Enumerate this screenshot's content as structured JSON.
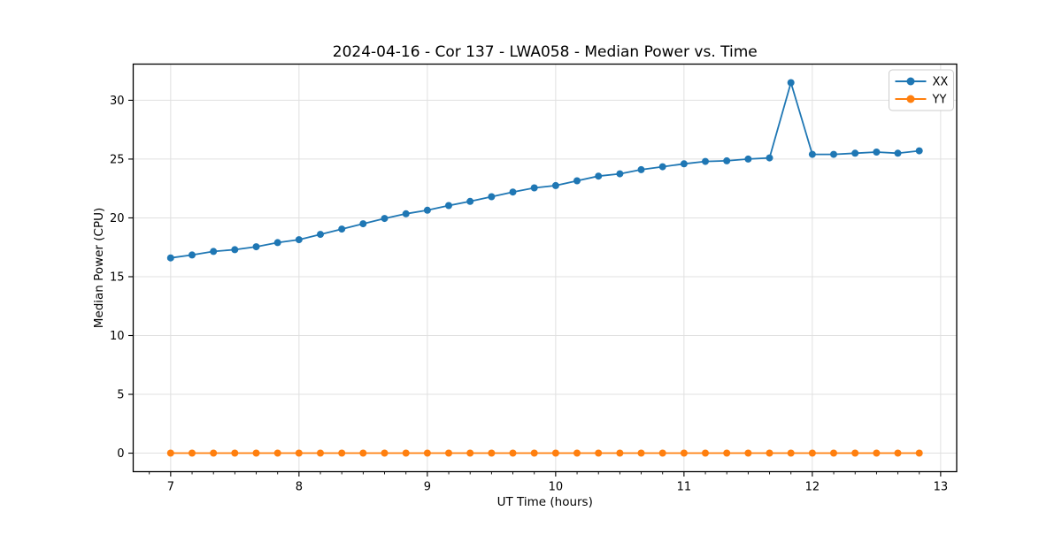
{
  "figure": {
    "background": "#ffffff",
    "frame_color": "#000000",
    "tick_color": "#000000"
  },
  "chart_data": {
    "type": "line",
    "title": "2024-04-16 - Cor 137 - LWA058 - Median Power vs. Time",
    "xlabel": "UT Time (hours)",
    "ylabel": "Median Power (CPU)",
    "xlim": [
      6.708,
      13.125
    ],
    "ylim": [
      -1.575,
      33.075
    ],
    "xticks": [
      7,
      8,
      9,
      10,
      11,
      12,
      13
    ],
    "yticks": [
      0,
      5,
      10,
      15,
      20,
      25,
      30
    ],
    "x_minor_step": 0.16667,
    "grid": true,
    "grid_color": "#e0e0e0",
    "legend_position": "top-right",
    "x": [
      7.0,
      7.1667,
      7.3333,
      7.5,
      7.6667,
      7.8333,
      8.0,
      8.1667,
      8.3333,
      8.5,
      8.6667,
      8.8333,
      9.0,
      9.1667,
      9.3333,
      9.5,
      9.6667,
      9.8333,
      10.0,
      10.1667,
      10.3333,
      10.5,
      10.6667,
      10.8333,
      11.0,
      11.1667,
      11.3333,
      11.5,
      11.6667,
      11.8333,
      12.0,
      12.1667,
      12.3333,
      12.5,
      12.6667,
      12.8333
    ],
    "series": [
      {
        "name": "XX",
        "color": "#1f77b4",
        "values": [
          16.6,
          16.85,
          17.15,
          17.3,
          17.55,
          17.9,
          18.15,
          18.6,
          19.05,
          19.5,
          19.95,
          20.35,
          20.65,
          21.05,
          21.4,
          21.8,
          22.2,
          22.55,
          22.75,
          23.15,
          23.55,
          23.75,
          24.1,
          24.35,
          24.6,
          24.8,
          24.85,
          25.0,
          25.1,
          31.5,
          25.4,
          25.4,
          25.5,
          25.6,
          25.5,
          25.7
        ]
      },
      {
        "name": "YY",
        "color": "#ff7f0e",
        "values": [
          0,
          0,
          0,
          0,
          0,
          0,
          0,
          0,
          0,
          0,
          0,
          0,
          0,
          0,
          0,
          0,
          0,
          0,
          0,
          0,
          0,
          0,
          0,
          0,
          0,
          0,
          0,
          0,
          0,
          0,
          0,
          0,
          0,
          0,
          0,
          0
        ]
      }
    ]
  }
}
